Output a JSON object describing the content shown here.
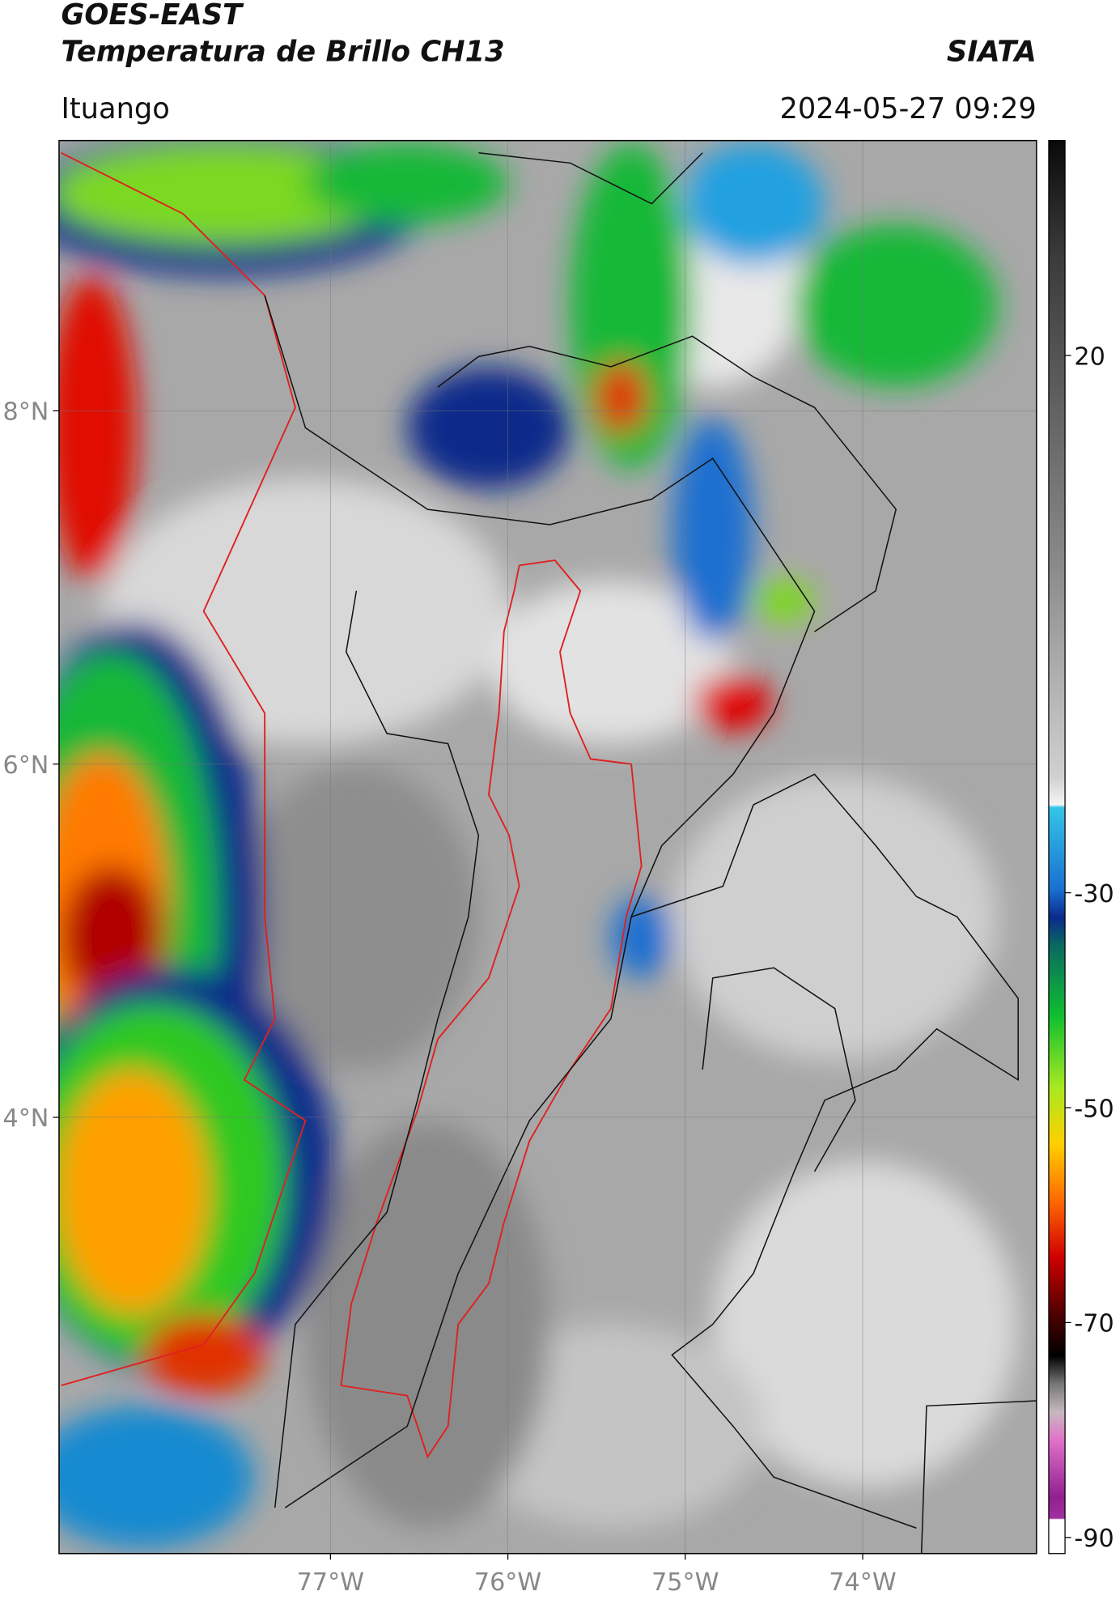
{
  "header": {
    "title": "GOES-EAST",
    "subtitle": "Temperatura de Brillo CH13",
    "source": "SIATA",
    "location": "Ituango",
    "datetime": "2024-05-27 09:29"
  },
  "map": {
    "lonlim": [
      -78.53,
      -73.02
    ],
    "latlim": [
      1.53,
      9.53
    ],
    "lonticks": [
      {
        "value": -77,
        "label": "77°W"
      },
      {
        "value": -76,
        "label": "76°W"
      },
      {
        "value": -75,
        "label": "75°W"
      },
      {
        "value": -74,
        "label": "74°W"
      }
    ],
    "latticks": [
      {
        "value": 8,
        "label": "8°N"
      },
      {
        "value": 6,
        "label": "6°N"
      },
      {
        "value": 4,
        "label": "4°N"
      }
    ],
    "grid": true
  },
  "colorbar": {
    "range": [
      -91.5,
      40
    ],
    "ticks": [
      20,
      -30,
      -50,
      -70,
      -90
    ]
  }
}
